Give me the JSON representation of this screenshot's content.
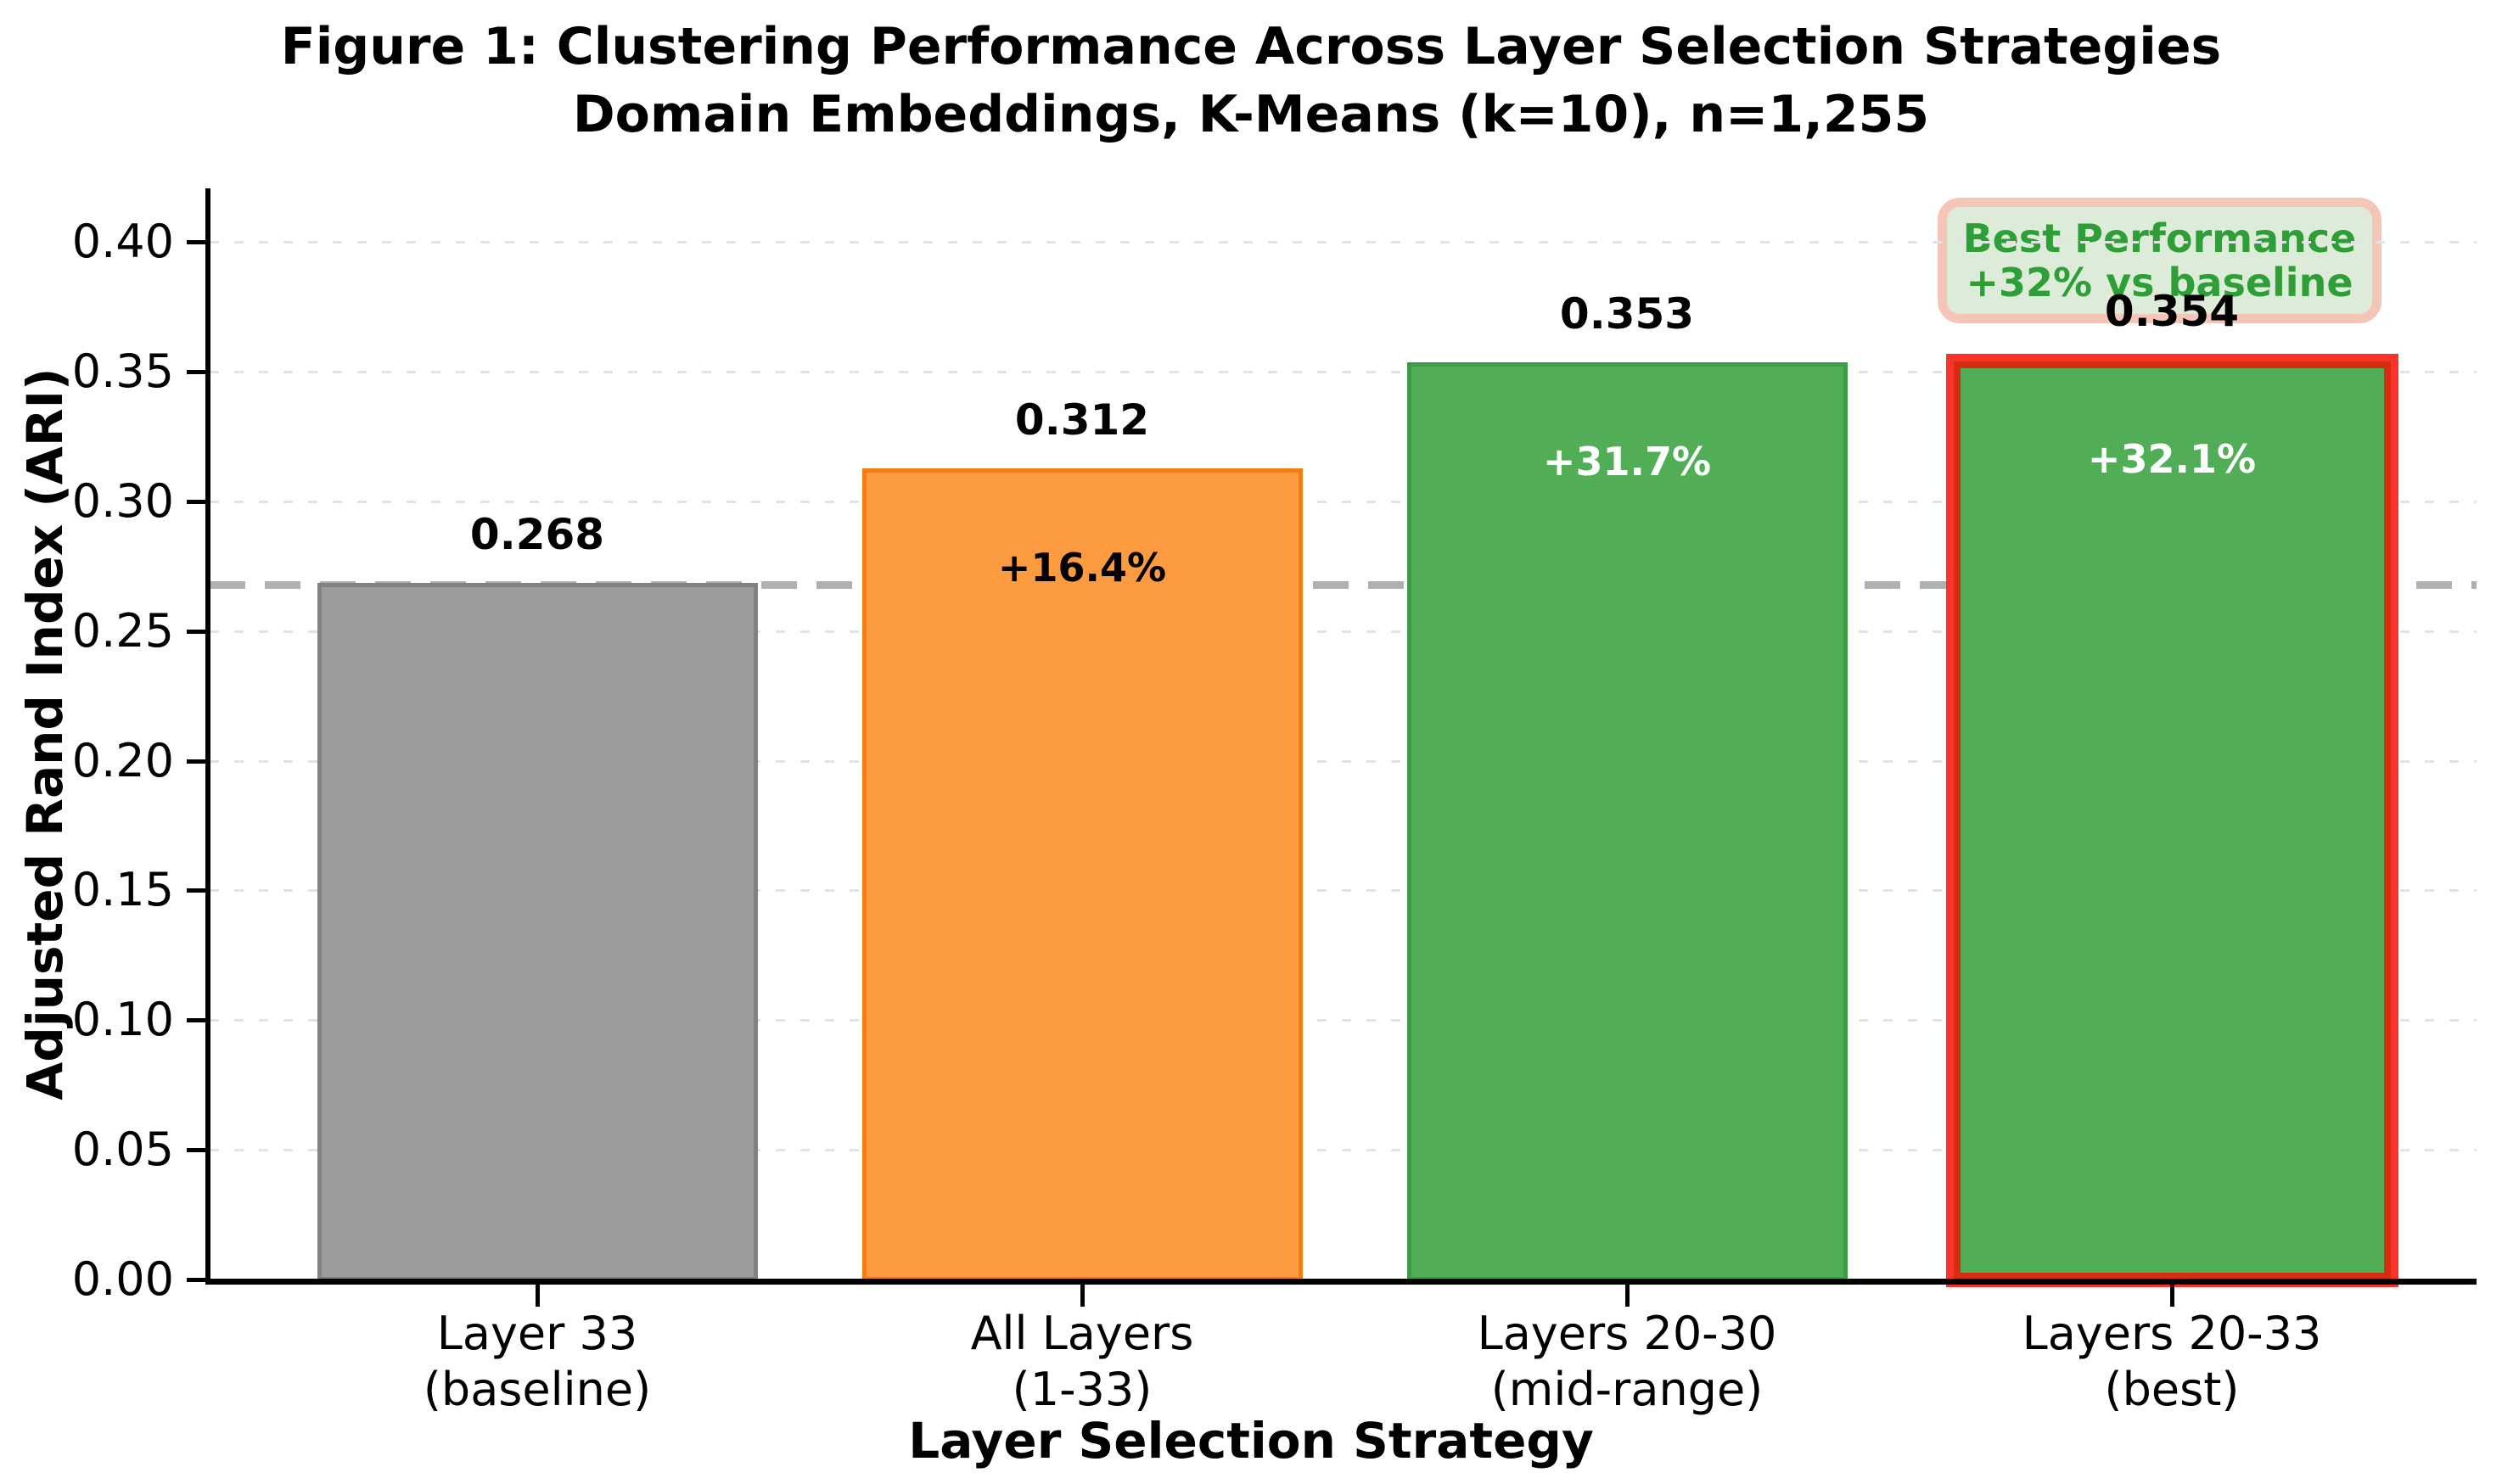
{
  "figure": {
    "title_line1": "Figure 1: Clustering Performance Across Layer Selection Strategies",
    "title_line2": "Domain Embeddings, K-Means (k=10), n=1,255"
  },
  "chart_data": {
    "type": "bar",
    "title": "Figure 1: Clustering Performance Across Layer Selection Strategies",
    "subtitle": "Domain Embeddings, K-Means (k=10), n=1,255",
    "xlabel": "Layer Selection Strategy",
    "ylabel": "Adjusted Rand Index (ARI)",
    "categories": [
      [
        "Layer 33",
        "(baseline)"
      ],
      [
        "All Layers",
        "(1-33)"
      ],
      [
        "Layers 20-30",
        "(mid-range)"
      ],
      [
        "Layers 20-33",
        "(best)"
      ]
    ],
    "values": [
      0.268,
      0.312,
      0.353,
      0.354
    ],
    "value_labels": [
      "0.268",
      "0.312",
      "0.353",
      "0.354"
    ],
    "pct_labels": [
      "",
      "+16.4%",
      "+31.7%",
      "+32.1%"
    ],
    "pct_label_colors": [
      "",
      "#000000",
      "#ffffff",
      "#ffffff"
    ],
    "bar_fills": [
      "#9b9b9b",
      "#fd9b41",
      "#51ae57",
      "#51ae57"
    ],
    "bar_edges": [
      "#828282",
      "#f07e14",
      "#3b9e43",
      "#3b9e43"
    ],
    "highlight_index": 3,
    "highlight_edge_outer": "#fa342a",
    "highlight_edge_inner": "#d62d10",
    "baseline_value": 0.268,
    "baseline_style": "dashed gray horizontal line",
    "ylim": [
      0,
      0.42
    ],
    "yticks": [
      0.0,
      0.05,
      0.1,
      0.15,
      0.2,
      0.25,
      0.3,
      0.35,
      0.4
    ],
    "ytick_labels": [
      "0.00",
      "0.05",
      "0.10",
      "0.15",
      "0.20",
      "0.25",
      "0.30",
      "0.35",
      "0.40"
    ],
    "grid": "horizontal dashed light-gray",
    "legend": "none",
    "annotation": {
      "line1": "Best Performance",
      "line2": "+32% vs baseline",
      "text_color": "#2e9e36",
      "fill_color": "#ddecd8",
      "border_color": "#f5c6b8"
    }
  }
}
